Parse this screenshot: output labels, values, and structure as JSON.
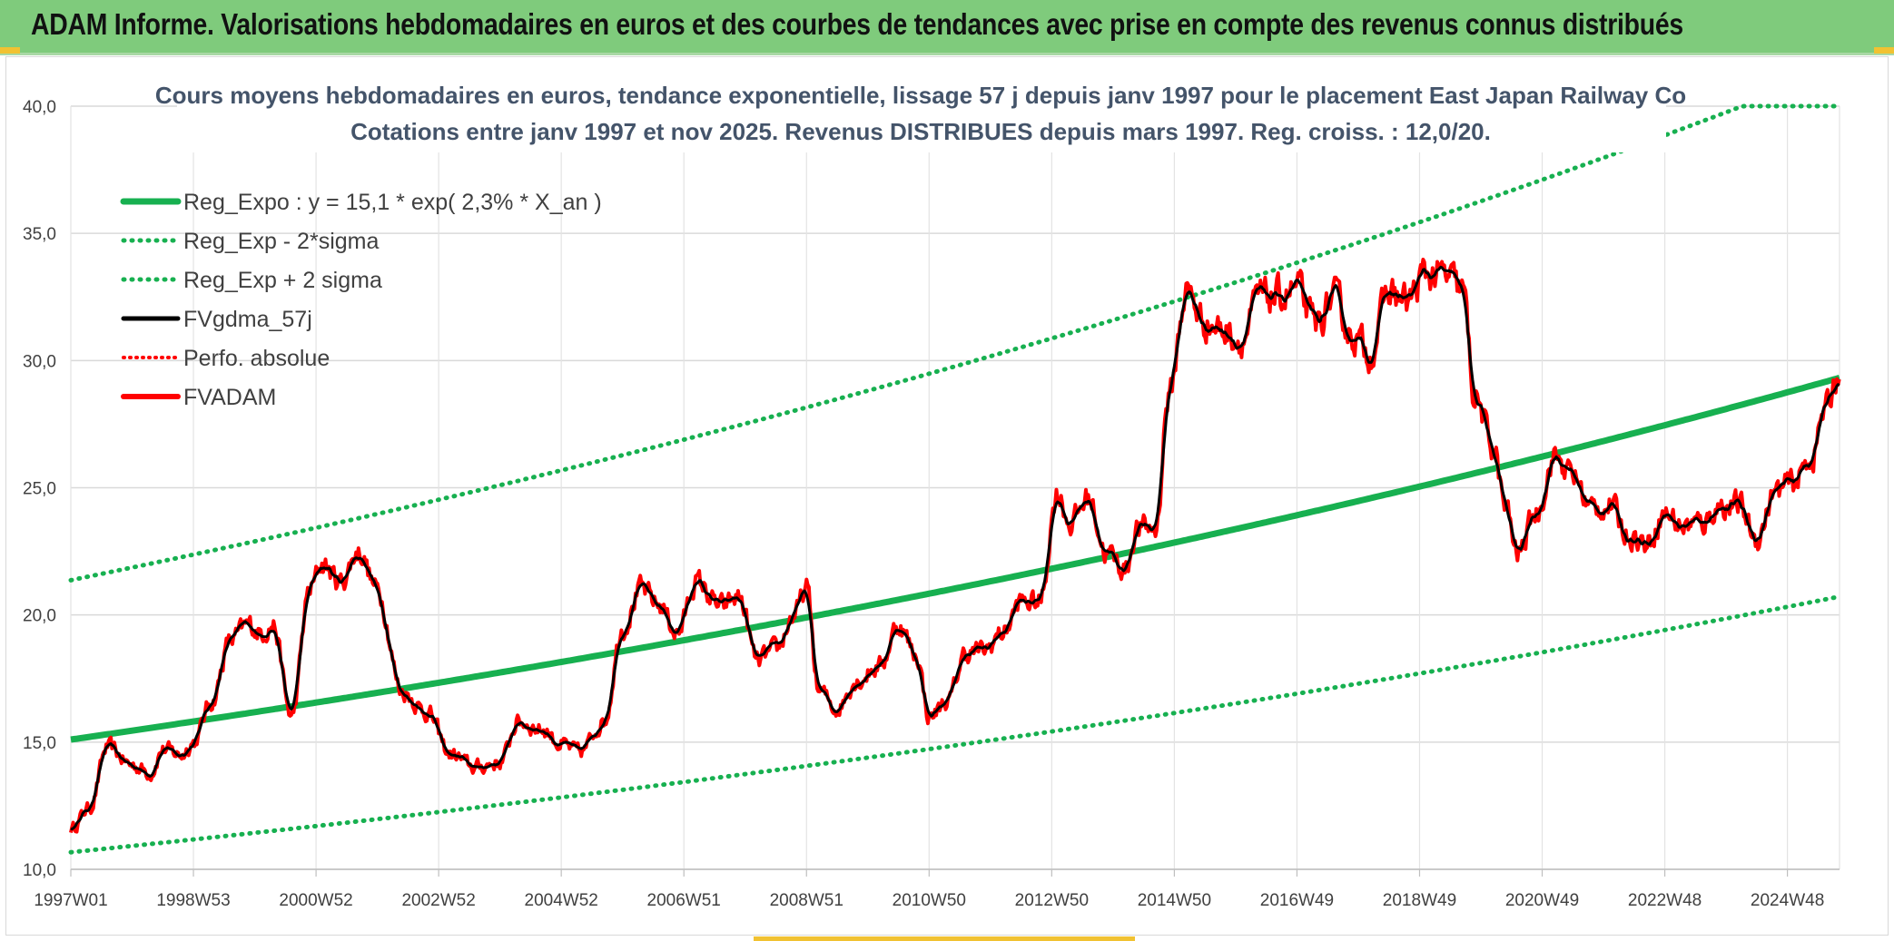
{
  "header": {
    "title": "ADAM Informe. Valorisations hebdomadaires en euros et des courbes de tendances avec prise en compte des revenus connus distribués"
  },
  "colors": {
    "banner": "#7fcb7c",
    "regression": "#17b050",
    "sigma_band": "#17b050",
    "smoothed": "#000000",
    "price": "#ff0000"
  },
  "chart_data": {
    "type": "line",
    "title": "Cours moyens hebdomadaires en euros, tendance exponentielle, lissage 57 j depuis janv 1997 pour le placement East Japan Railway Co",
    "subtitle": "Cotations entre janv 1997 et nov 2025. Revenus DISTRIBUES depuis mars 1997. Reg. croiss. : 12,0/20.",
    "xlabel": "",
    "ylabel": "",
    "ylim": [
      10,
      40
    ],
    "xlim": [
      1997.0,
      2025.85
    ],
    "grid": true,
    "legend_position": "top-left",
    "x_tick_labels": [
      "1997W01",
      "1998W53",
      "2000W52",
      "2002W52",
      "2004W52",
      "2006W51",
      "2008W51",
      "2010W50",
      "2012W50",
      "2014W50",
      "2016W49",
      "2018W49",
      "2020W49",
      "2022W48",
      "2024W48"
    ],
    "x_tick_positions": [
      1997.0,
      1999.0,
      2001.0,
      2003.0,
      2005.0,
      2007.0,
      2009.0,
      2011.0,
      2013.0,
      2015.0,
      2017.0,
      2019.0,
      2021.0,
      2023.0,
      2025.0
    ],
    "y_tick_labels": [
      "10,0",
      "15,0",
      "20,0",
      "25,0",
      "30,0",
      "35,0",
      "40,0"
    ],
    "y_tick_values": [
      10,
      15,
      20,
      25,
      30,
      35,
      40
    ],
    "regression": {
      "a": 15.1,
      "rate": 0.023,
      "sigma_factor": 1.415
    },
    "legend": [
      {
        "label": "Reg_Expo : y = 15,1 * exp( 2,3% *  X_an )",
        "style": "solid-green"
      },
      {
        "label": "Reg_Exp - 2*sigma",
        "style": "dotted-green"
      },
      {
        "label": "Reg_Exp + 2 sigma",
        "style": "dotted-green"
      },
      {
        "label": "FVgdma_57j",
        "style": "solid-black"
      },
      {
        "label": "Perfo. absolue",
        "style": "dotted-red"
      },
      {
        "label": "FVADAM",
        "style": "solid-red"
      }
    ],
    "series": [
      {
        "name": "FVADAM (key points)",
        "x": [
          1997.0,
          1997.3,
          1997.6,
          1998.0,
          1998.3,
          1998.5,
          1998.8,
          1999.0,
          1999.3,
          1999.6,
          1999.9,
          2000.1,
          2000.3,
          2000.6,
          2000.9,
          2001.1,
          2001.4,
          2001.7,
          2002.0,
          2002.4,
          2002.8,
          2003.2,
          2003.6,
          2004.0,
          2004.3,
          2004.7,
          2005.0,
          2005.3,
          2005.7,
          2006.0,
          2006.3,
          2006.6,
          2006.9,
          2007.2,
          2007.6,
          2007.9,
          2008.2,
          2008.5,
          2008.8,
          2009.0,
          2009.2,
          2009.5,
          2009.8,
          2010.2,
          2010.5,
          2010.8,
          2011.0,
          2011.3,
          2011.6,
          2011.9,
          2012.2,
          2012.5,
          2012.8,
          2013.1,
          2013.3,
          2013.6,
          2013.9,
          2014.2,
          2014.4,
          2014.7,
          2014.9,
          2015.2,
          2015.5,
          2015.8,
          2016.1,
          2016.4,
          2016.7,
          2017.0,
          2017.3,
          2017.6,
          2017.9,
          2018.2,
          2018.5,
          2018.8,
          2019.1,
          2019.4,
          2019.7,
          2019.9,
          2020.2,
          2020.4,
          2020.6,
          2020.9,
          2021.2,
          2021.5,
          2021.8,
          2022.1,
          2022.4,
          2022.7,
          2023.0,
          2023.3,
          2023.6,
          2023.9,
          2024.2,
          2024.5,
          2024.8,
          2025.1,
          2025.4,
          2025.6,
          2025.85
        ],
        "y": [
          11.6,
          12.4,
          14.8,
          14.1,
          13.8,
          14.7,
          14.5,
          15.0,
          16.6,
          19.0,
          19.6,
          19.3,
          19.6,
          16.0,
          21.0,
          22.0,
          21.3,
          22.5,
          21.0,
          17.0,
          16.2,
          14.5,
          14.0,
          14.2,
          15.8,
          15.5,
          14.9,
          14.6,
          15.8,
          19.5,
          21.0,
          20.4,
          19.3,
          21.3,
          20.3,
          20.7,
          18.2,
          18.6,
          20.0,
          21.0,
          17.0,
          16.3,
          17.4,
          18.0,
          19.6,
          18.4,
          16.0,
          16.6,
          18.5,
          18.6,
          19.3,
          20.5,
          20.5,
          24.8,
          23.6,
          24.6,
          22.4,
          21.8,
          23.4,
          23.4,
          28.5,
          32.7,
          31.5,
          31.2,
          30.8,
          32.5,
          32.5,
          32.8,
          31.4,
          32.4,
          31.0,
          30.3,
          32.7,
          32.3,
          33.4,
          33.3,
          32.8,
          28.6,
          26.6,
          24.2,
          22.4,
          24.0,
          26.2,
          25.5,
          24.2,
          24.3,
          23.2,
          22.8,
          24.0,
          23.5,
          23.6,
          24.3,
          24.3,
          23.0,
          24.8,
          25.2,
          26.2,
          28.0,
          29.5
        ]
      }
    ]
  }
}
